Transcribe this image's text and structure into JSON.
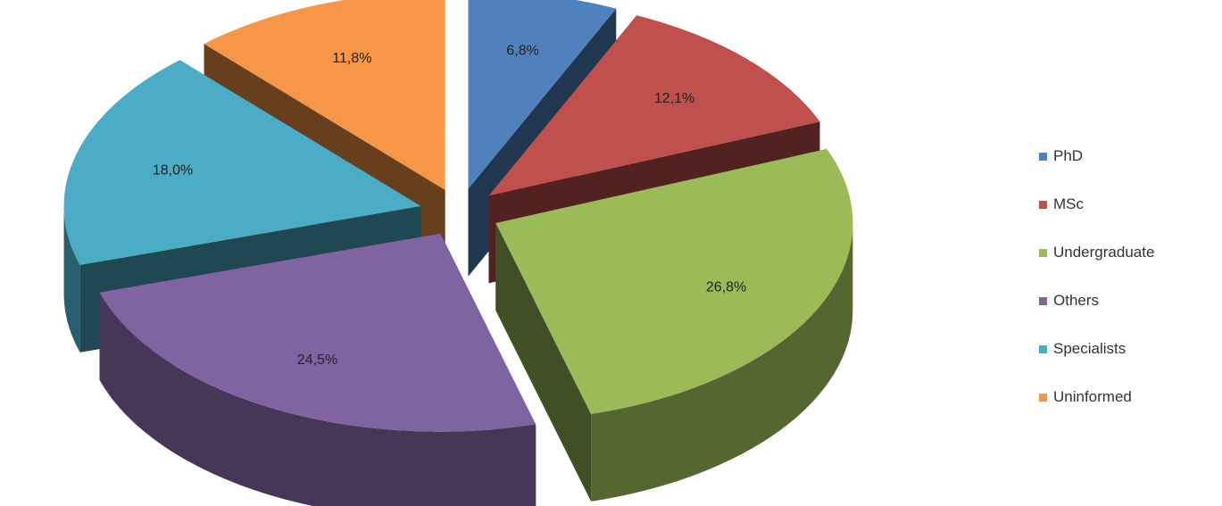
{
  "chart_data": {
    "type": "pie",
    "title": "",
    "categories": [
      "PhD",
      "MSc",
      "Undergraduate",
      "Others",
      "Specialists",
      "Uninformed"
    ],
    "values": [
      6.8,
      12.1,
      26.8,
      24.5,
      18.0,
      11.8
    ],
    "value_labels": [
      "6,8%",
      "12,1%",
      "26,8%",
      "24,5%",
      "18,0%",
      "11,8%"
    ],
    "colors": [
      "#4f81bd",
      "#c0504d",
      "#9bbb59",
      "#8064a2",
      "#4bacc6",
      "#f79646"
    ],
    "legend_position": "right",
    "exploded": true,
    "three_d": true
  }
}
